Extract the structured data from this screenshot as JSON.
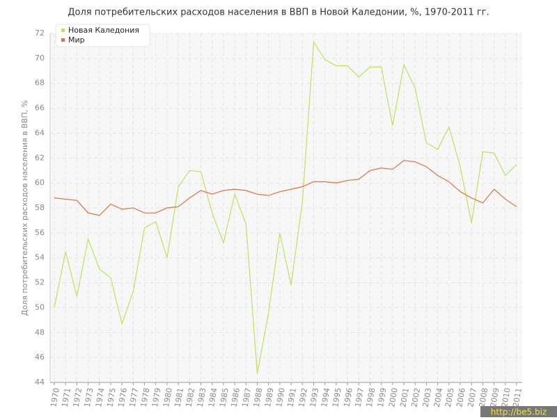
{
  "chart_data": {
    "type": "line",
    "title": "Доля потребительских расходов населения в ВВП в Новой Каледонии, %, 1970-2011 гг.",
    "y_label": "Доля потребительских расходов населения в ВВП, %",
    "categories": [
      "1970",
      "1971",
      "1972",
      "1973",
      "1974",
      "1975",
      "1976",
      "1977",
      "1978",
      "1979",
      "1980",
      "1981",
      "1982",
      "1983",
      "1984",
      "1985",
      "1986",
      "1987",
      "1988",
      "1989",
      "1990",
      "1991",
      "1992",
      "1993",
      "1994",
      "1995",
      "1996",
      "1997",
      "1998",
      "1999",
      "2000",
      "2001",
      "2002",
      "2003",
      "2004",
      "2005",
      "2006",
      "2007",
      "2008",
      "2009",
      "2010",
      "2011"
    ],
    "series": [
      {
        "name": "Новая Каледония",
        "color": "#c3e05a",
        "values": [
          50.0,
          54.5,
          50.9,
          55.5,
          53.1,
          52.4,
          48.7,
          51.3,
          56.4,
          56.9,
          54.0,
          59.7,
          61.0,
          60.9,
          57.6,
          55.2,
          59.1,
          56.7,
          44.7,
          49.6,
          56.0,
          51.8,
          58.5,
          71.3,
          69.9,
          69.4,
          69.4,
          68.5,
          69.3,
          69.3,
          64.6,
          69.5,
          67.6,
          63.2,
          62.7,
          64.5,
          61.3,
          56.8,
          62.5,
          62.4,
          60.6,
          61.5
        ]
      },
      {
        "name": "Мир",
        "color": "#e0703f",
        "values": [
          58.8,
          58.7,
          58.6,
          57.6,
          57.4,
          58.3,
          57.9,
          58.0,
          57.6,
          57.6,
          58.0,
          58.1,
          58.8,
          59.4,
          59.1,
          59.4,
          59.5,
          59.4,
          59.1,
          59.0,
          59.3,
          59.5,
          59.7,
          60.1,
          60.1,
          60.0,
          60.2,
          60.3,
          61.0,
          61.2,
          61.1,
          61.8,
          61.7,
          61.3,
          60.6,
          60.1,
          59.3,
          58.8,
          58.4,
          59.5,
          58.7,
          58.1
        ]
      }
    ],
    "ylim": [
      44,
      72
    ],
    "yticks": [
      44,
      46,
      48,
      50,
      52,
      54,
      56,
      58,
      60,
      62,
      64,
      66,
      68,
      70,
      72
    ],
    "grid": true,
    "legend": "top-left",
    "watermark": "http://be5.biz"
  }
}
